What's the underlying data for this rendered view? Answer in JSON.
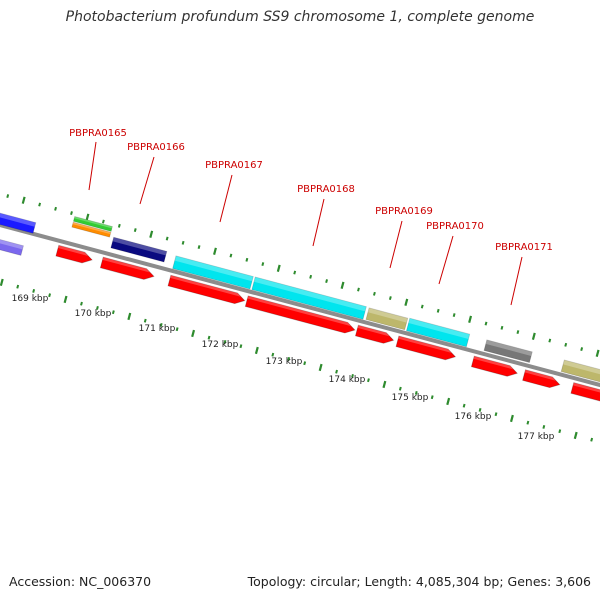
{
  "title": "Photobacterium profundum SS9 chromosome 1, complete genome",
  "footer": {
    "accession": "Accession: NC_006370",
    "summary": "Topology: circular; Length: 4,085,304 bp; Genes: 3,606"
  },
  "scale": {
    "labels": [
      "169 kbp",
      "170 kbp",
      "171 kbp",
      "172 kbp",
      "173 kbp",
      "174 kbp",
      "175 kbp",
      "176 kbp",
      "177 kbp"
    ]
  },
  "gene_labels": [
    "PBPRA0165",
    "PBPRA0166",
    "PBPRA0167",
    "PBPRA0168",
    "PBPRA0169",
    "PBPRA0170",
    "PBPRA0171"
  ],
  "colors": {
    "backbone": "#8c8c8c",
    "tick": "#2e8b2e",
    "label": "#cc0000",
    "cds": "#ff0000",
    "blue": "#1a1aff",
    "slate": "#7b68ee",
    "green": "#33cc33",
    "orange": "#ff8c00",
    "navy": "#0a0a80",
    "cyan": "#00e5ee",
    "khaki": "#bdb76b",
    "gray": "#777777"
  }
}
